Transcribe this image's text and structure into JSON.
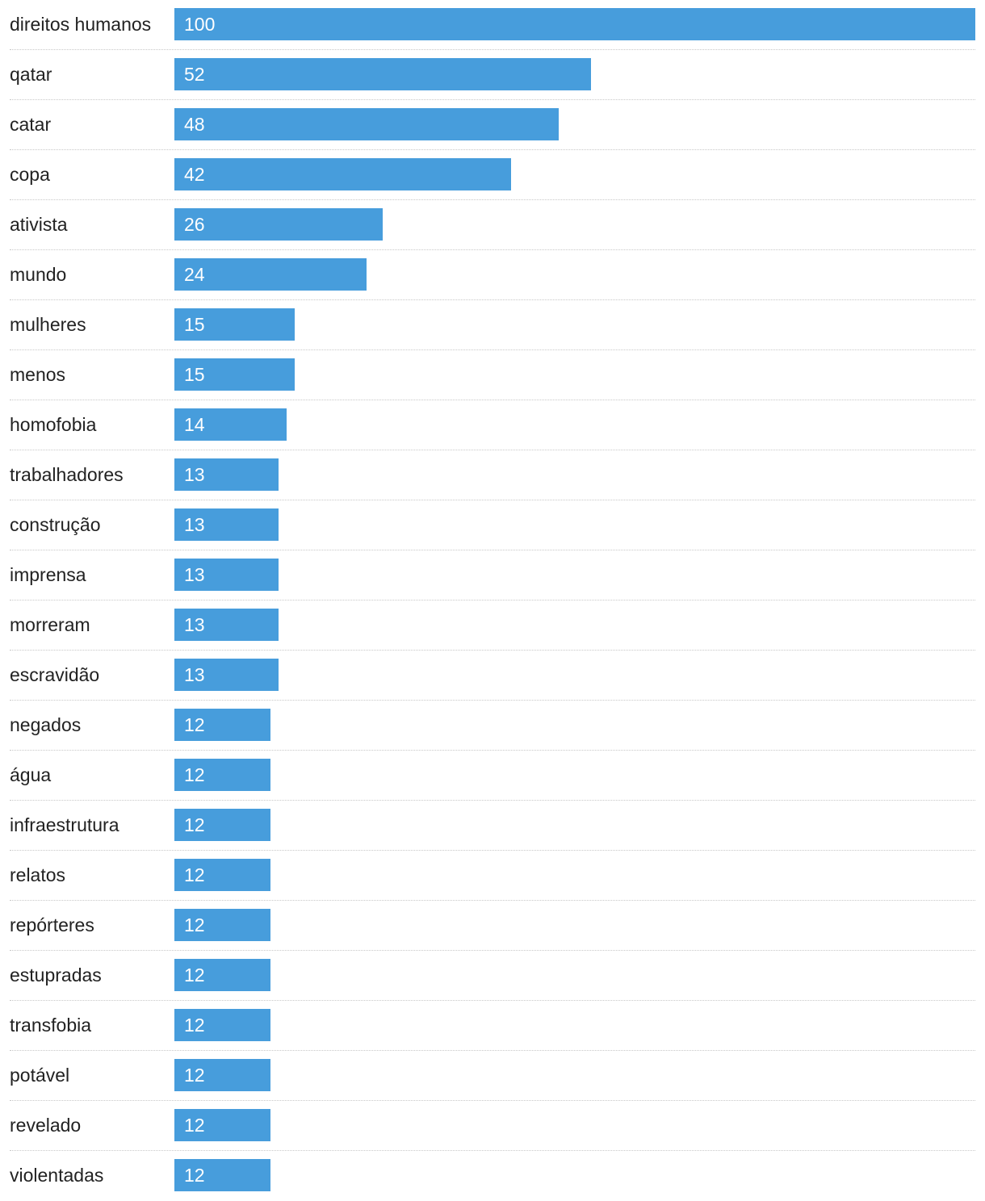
{
  "chart_data": {
    "type": "bar",
    "orientation": "horizontal",
    "bar_color": "#479ddc",
    "xlim": [
      0,
      100
    ],
    "grid": false,
    "categories": [
      "direitos humanos",
      "qatar",
      "catar",
      "copa",
      "ativista",
      "mundo",
      "mulheres",
      "menos",
      "homofobia",
      "trabalhadores",
      "construção",
      "imprensa",
      "morreram",
      "escravidão",
      "negados",
      "água",
      "infraestrutura",
      "relatos",
      "repórteres",
      "estupradas",
      "transfobia",
      "potável",
      "revelado",
      "violentadas"
    ],
    "values": [
      100,
      52,
      48,
      42,
      26,
      24,
      15,
      15,
      14,
      13,
      13,
      13,
      13,
      13,
      12,
      12,
      12,
      12,
      12,
      12,
      12,
      12,
      12,
      12
    ],
    "value_labels": [
      "100",
      "52",
      "48",
      "42",
      "26",
      "24",
      "15",
      "15",
      "14",
      "13",
      "13",
      "13",
      "13",
      "13",
      "12",
      "12",
      "12",
      "12",
      "12",
      "12",
      "12",
      "12",
      "12",
      "12"
    ]
  }
}
